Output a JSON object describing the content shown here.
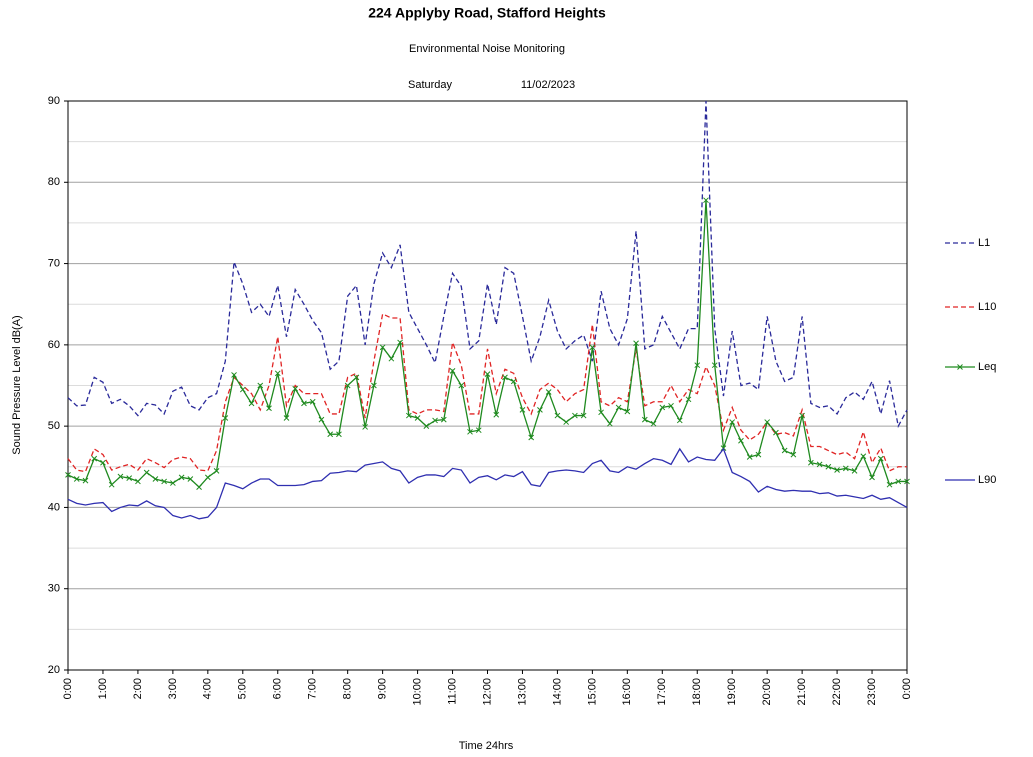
{
  "chart_data": {
    "type": "line",
    "title": "224 Applyby Road, Stafford Heights",
    "subtitle": "Environmental  Noise Monitoring",
    "day": "Saturday",
    "date": "11/02/2023",
    "y_label": "Sound Pressure Level dB(A)",
    "x_label": "Time 24hrs",
    "x": [
      0,
      0.25,
      0.5,
      0.75,
      1,
      1.25,
      1.5,
      1.75,
      2,
      2.25,
      2.5,
      2.75,
      3,
      3.25,
      3.5,
      3.75,
      4,
      4.25,
      4.5,
      4.75,
      5,
      5.25,
      5.5,
      5.75,
      6,
      6.25,
      6.5,
      6.75,
      7,
      7.25,
      7.5,
      7.75,
      8,
      8.25,
      8.5,
      8.75,
      9,
      9.25,
      9.5,
      9.75,
      10,
      10.25,
      10.5,
      10.75,
      11,
      11.25,
      11.5,
      11.75,
      12,
      12.25,
      12.5,
      12.75,
      13,
      13.25,
      13.5,
      13.75,
      14,
      14.25,
      14.5,
      14.75,
      15,
      15.25,
      15.5,
      15.75,
      16,
      16.25,
      16.5,
      16.75,
      17,
      17.25,
      17.5,
      17.75,
      18,
      18.25,
      18.5,
      18.75,
      19,
      19.25,
      19.5,
      19.75,
      20,
      20.25,
      20.5,
      20.75,
      21,
      21.25,
      21.5,
      21.75,
      22,
      22.25,
      22.5,
      22.75,
      23,
      23.25,
      23.5,
      23.75,
      24
    ],
    "xlim": [
      0,
      24
    ],
    "xticks": [
      {
        "value": 0,
        "label": "0:00"
      },
      {
        "value": 1,
        "label": "1:00"
      },
      {
        "value": 2,
        "label": "2:00"
      },
      {
        "value": 3,
        "label": "3:00"
      },
      {
        "value": 4,
        "label": "4:00"
      },
      {
        "value": 5,
        "label": "5:00"
      },
      {
        "value": 6,
        "label": "6:00"
      },
      {
        "value": 7,
        "label": "7:00"
      },
      {
        "value": 8,
        "label": "8:00"
      },
      {
        "value": 9,
        "label": "9:00"
      },
      {
        "value": 10,
        "label": "10:00"
      },
      {
        "value": 11,
        "label": "11:00"
      },
      {
        "value": 12,
        "label": "12:00"
      },
      {
        "value": 13,
        "label": "13:00"
      },
      {
        "value": 14,
        "label": "14:00"
      },
      {
        "value": 15,
        "label": "15:00"
      },
      {
        "value": 16,
        "label": "16:00"
      },
      {
        "value": 17,
        "label": "17:00"
      },
      {
        "value": 18,
        "label": "18:00"
      },
      {
        "value": 19,
        "label": "19:00"
      },
      {
        "value": 20,
        "label": "20:00"
      },
      {
        "value": 21,
        "label": "21:00"
      },
      {
        "value": 22,
        "label": "22:00"
      },
      {
        "value": 23,
        "label": "23:00"
      },
      {
        "value": 24,
        "label": "0:00"
      }
    ],
    "ylim": [
      20,
      90
    ],
    "yticks": [
      20,
      30,
      40,
      50,
      60,
      70,
      80,
      90
    ],
    "y_minor_grid": [
      25,
      35,
      45,
      55,
      65,
      75,
      85
    ],
    "grid": true,
    "legend": "right",
    "series": [
      {
        "name": "L1",
        "color": "#2a2a9a",
        "dash": "dashed",
        "values": [
          53.5,
          52.5,
          52.6,
          56,
          55.4,
          52.8,
          53.3,
          52.5,
          51.3,
          52.8,
          52.6,
          51.5,
          54.3,
          54.8,
          52.5,
          52,
          53.5,
          54,
          58,
          70.2,
          67.5,
          64,
          65,
          63.5,
          67.3,
          61,
          66.8,
          65,
          63,
          61.5,
          57,
          58,
          66,
          67.3,
          60,
          67.5,
          71.3,
          69.5,
          72.3,
          64,
          62,
          60,
          57.8,
          63.5,
          68.8,
          67.2,
          59.5,
          60.5,
          67.5,
          62.5,
          69.5,
          68.8,
          63.5,
          58,
          61,
          65.5,
          61.7,
          59.5,
          60.5,
          61.2,
          58,
          66.6,
          62,
          60,
          63.2,
          74,
          59.5,
          60,
          63.5,
          61.5,
          59.5,
          62,
          62,
          90,
          62,
          53.7,
          61.7,
          55,
          55.3,
          54.5,
          63.5,
          58,
          55.5,
          56,
          63.5,
          52.8,
          52.3,
          52.5,
          51.5,
          53.5,
          54.2,
          53.3,
          55.5,
          51.5,
          55.6,
          50,
          52
        ]
      },
      {
        "name": "L10",
        "color": "#e02424",
        "dash": "dashed",
        "values": [
          46,
          44.6,
          44.4,
          47.2,
          46.5,
          44.6,
          45,
          45.3,
          44.6,
          46,
          45.5,
          44.9,
          45.9,
          46.2,
          46,
          44.6,
          44.5,
          47,
          53,
          56,
          55,
          54,
          52,
          55,
          61,
          52.5,
          55,
          54,
          54,
          54,
          51.5,
          51.5,
          56,
          56.5,
          51,
          58,
          63.8,
          63.3,
          63.3,
          52,
          51.5,
          52,
          52,
          51.8,
          60.3,
          57.5,
          51.5,
          51.5,
          59.5,
          54,
          57,
          56.5,
          53.5,
          51.5,
          54.5,
          55.3,
          54.5,
          53,
          54,
          54.5,
          62.5,
          53,
          52.5,
          53.5,
          53,
          59.5,
          52.5,
          53,
          53,
          55,
          53,
          54.5,
          54,
          57.3,
          55,
          49.5,
          52.3,
          49.5,
          48.3,
          49,
          50.5,
          49,
          49.2,
          48.8,
          52,
          47.5,
          47.5,
          47,
          46.5,
          46.8,
          46,
          49.3,
          45.5,
          47.3,
          44.5,
          45,
          45
        ]
      },
      {
        "name": "Leq",
        "color": "#1f8a1f",
        "dash": "solid",
        "marker": "x",
        "values": [
          44,
          43.5,
          43.3,
          46,
          45.5,
          42.8,
          43.8,
          43.6,
          43.2,
          44.3,
          43.5,
          43.2,
          43,
          43.7,
          43.5,
          42.5,
          43.7,
          44.5,
          51,
          56.3,
          54.5,
          52.8,
          55,
          52.2,
          56.5,
          51,
          54.6,
          52.8,
          53,
          50.8,
          49,
          49,
          55,
          56,
          49.9,
          55,
          59.7,
          58.3,
          60.3,
          51.3,
          51,
          50,
          50.7,
          50.8,
          56.8,
          55,
          49.3,
          49.5,
          56.4,
          51.4,
          56,
          55.5,
          52,
          48.6,
          52,
          54.2,
          51.3,
          50.5,
          51.3,
          51.3,
          59.7,
          51.7,
          50.3,
          52.3,
          51.8,
          60.2,
          50.8,
          50.3,
          52.3,
          52.5,
          50.7,
          53.3,
          57.5,
          77.8,
          57.5,
          47.3,
          50.5,
          48.2,
          46.2,
          46.5,
          50.5,
          49.2,
          47,
          46.5,
          51.3,
          45.5,
          45.3,
          45,
          44.6,
          44.8,
          44.5,
          46.3,
          43.7,
          46,
          42.8,
          43.2,
          43.2
        ]
      },
      {
        "name": "L90",
        "color": "#2f2fb0",
        "dash": "solid",
        "values": [
          41,
          40.5,
          40.3,
          40.5,
          40.6,
          39.5,
          40,
          40.3,
          40.2,
          40.8,
          40.2,
          40,
          39,
          38.7,
          39,
          38.6,
          38.8,
          40,
          43,
          42.7,
          42.3,
          43,
          43.5,
          43.5,
          42.7,
          42.7,
          42.7,
          42.8,
          43.2,
          43.3,
          44.2,
          44.3,
          44.5,
          44.4,
          45.2,
          45.4,
          45.6,
          44.8,
          44.5,
          43,
          43.7,
          44,
          44,
          43.8,
          44.8,
          44.6,
          43,
          43.7,
          43.9,
          43.4,
          44,
          43.8,
          44.4,
          42.8,
          42.6,
          44.3,
          44.5,
          44.6,
          44.5,
          44.3,
          45.4,
          45.8,
          44.5,
          44.3,
          45,
          44.7,
          45.4,
          46,
          45.8,
          45.3,
          47.2,
          45.6,
          46.2,
          45.9,
          45.8,
          47.2,
          44.3,
          43.8,
          43.2,
          41.9,
          42.6,
          42.2,
          42,
          42.1,
          42,
          42,
          41.7,
          41.8,
          41.4,
          41.5,
          41.3,
          41.1,
          41.5,
          41,
          41.2,
          40.6,
          40
        ]
      }
    ]
  }
}
